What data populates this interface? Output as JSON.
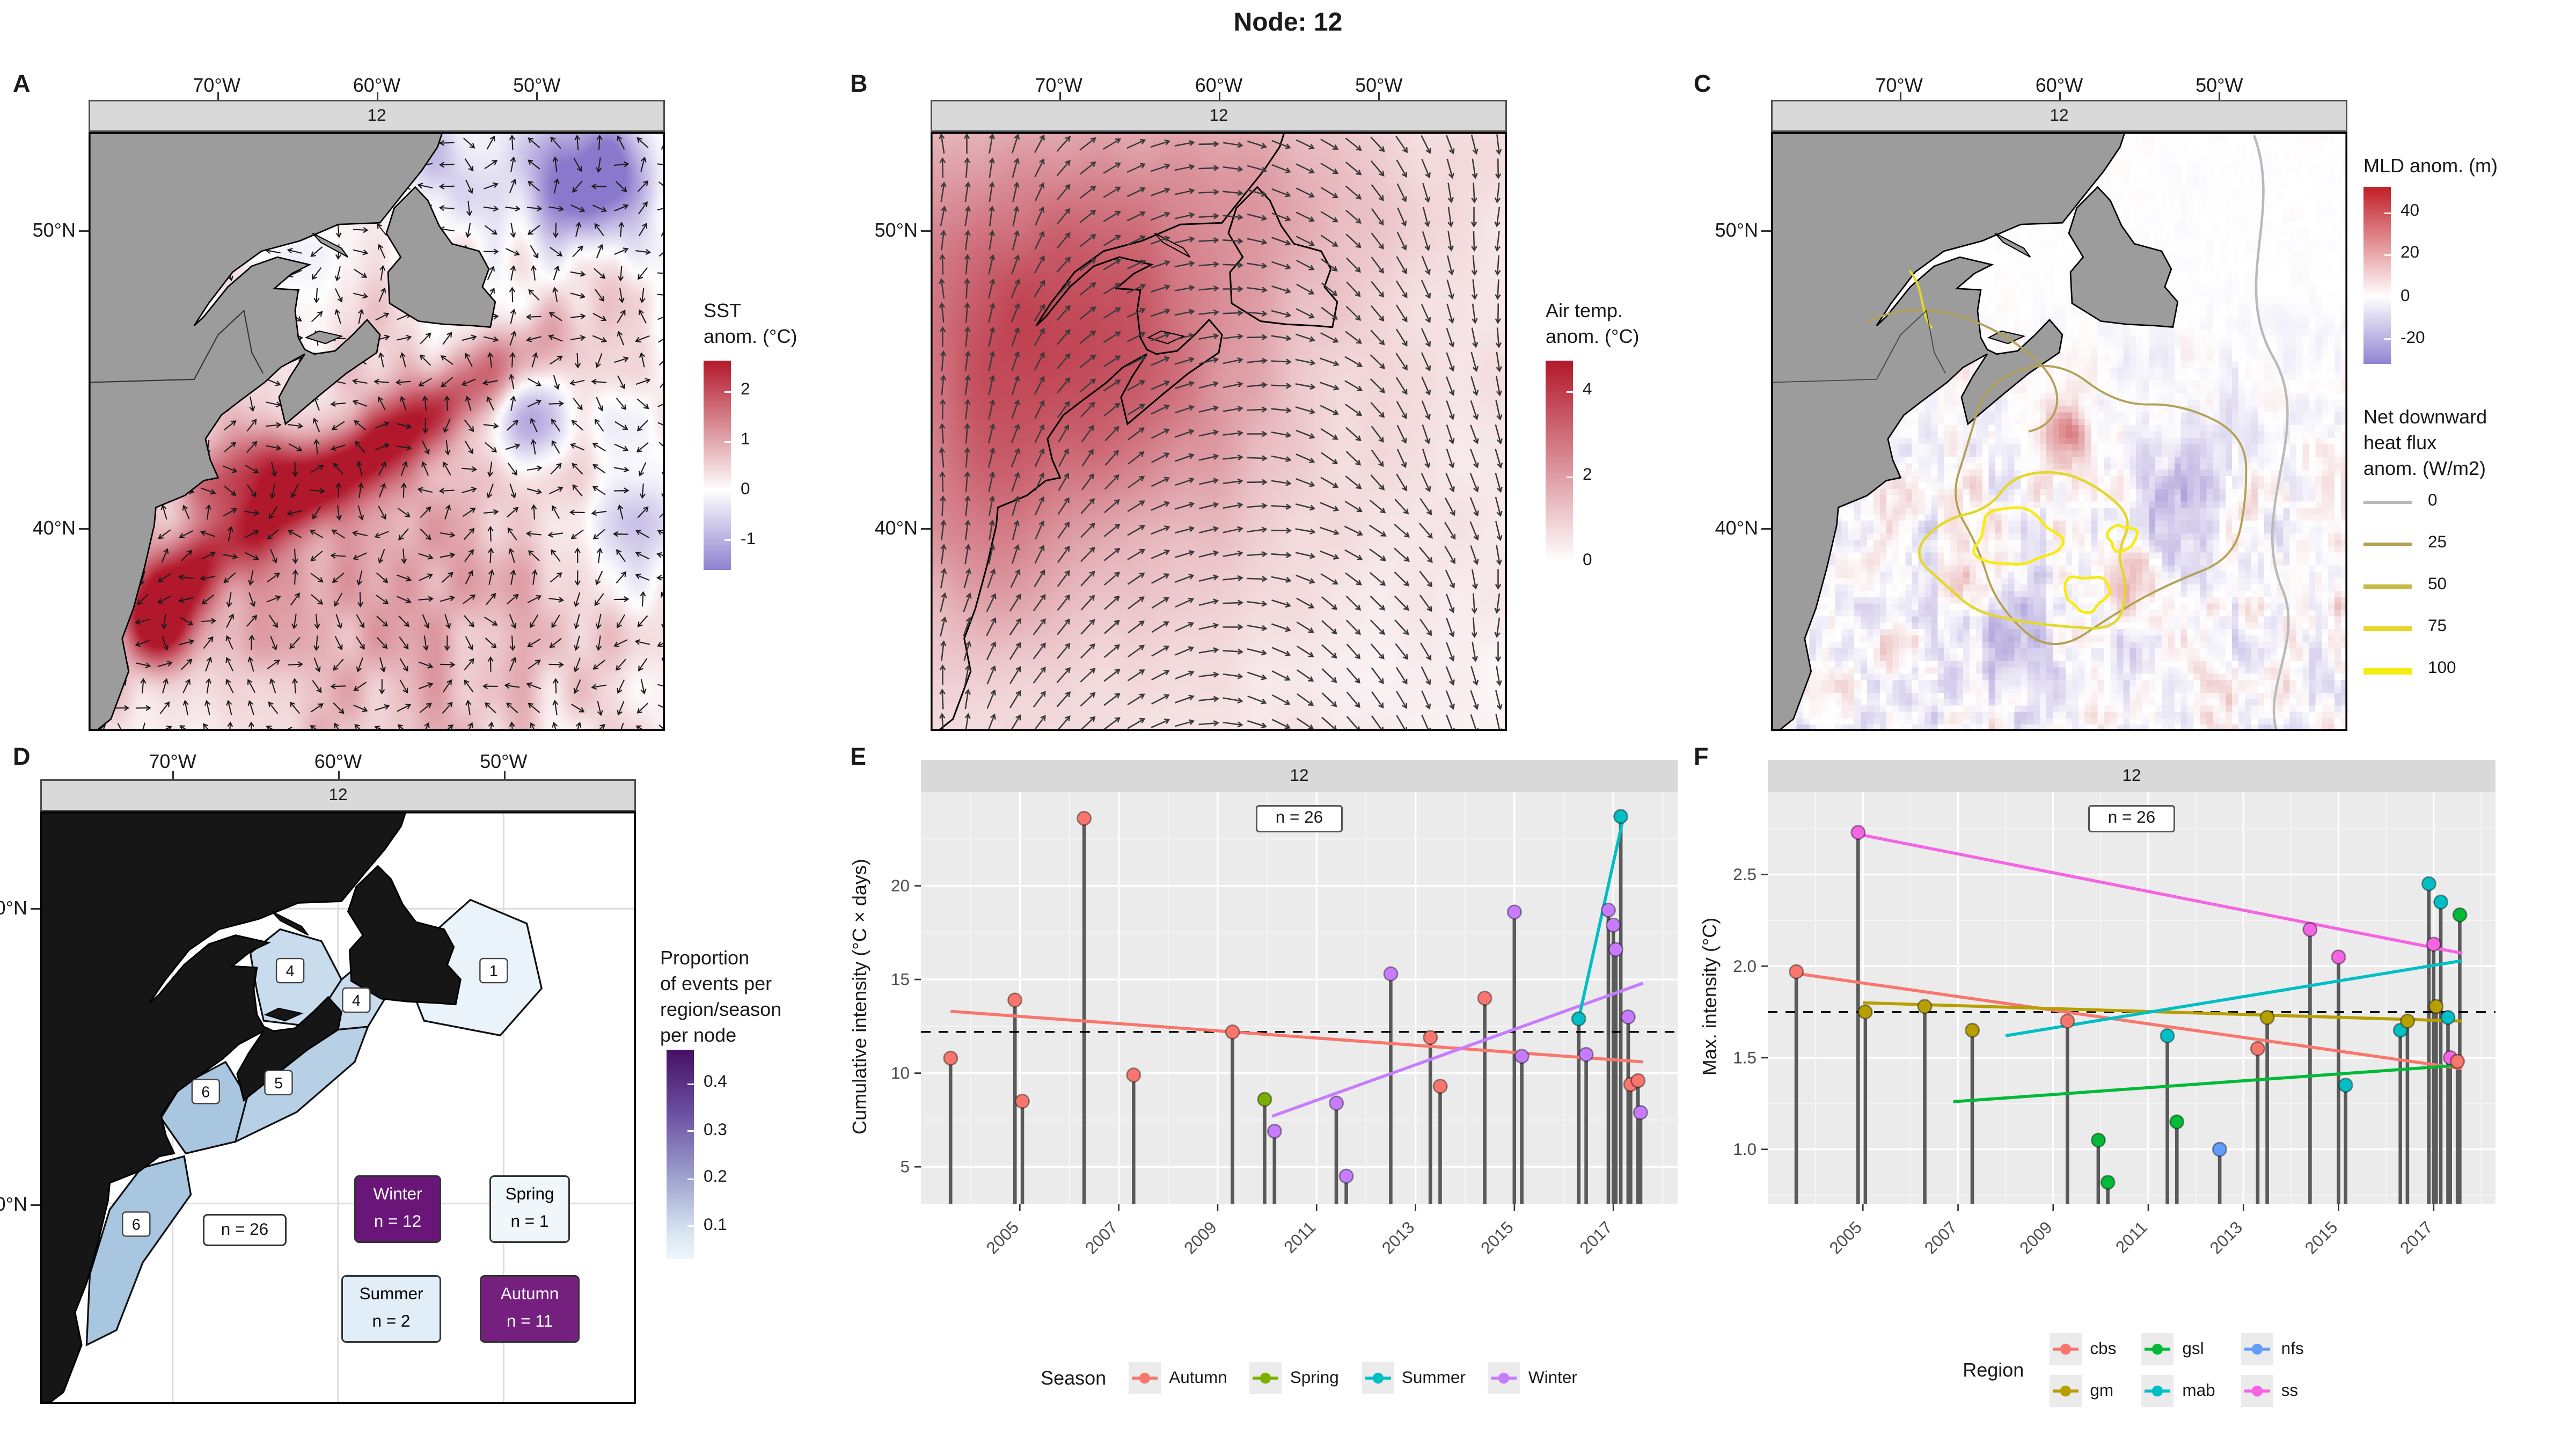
{
  "title": "Node: 12",
  "map_axes": {
    "lon": [
      "70°W",
      "60°W",
      "50°W"
    ],
    "lat": [
      "50°N",
      "40°N"
    ]
  },
  "panels": {
    "A": {
      "letter": "A",
      "strip": "12",
      "colorbar": {
        "title": [
          "SST",
          "anom. (°C)"
        ],
        "ticks": [
          "2",
          "1",
          "0",
          "-1"
        ],
        "top_color": "#b2182b",
        "mid_color": "#ffffff",
        "bottom_color": "#8f81d0"
      }
    },
    "B": {
      "letter": "B",
      "strip": "12",
      "colorbar": {
        "title": [
          "Air temp.",
          "anom. (°C)"
        ],
        "ticks": [
          "4",
          "2",
          "0"
        ],
        "top_color": "#b2182b",
        "bottom_color": "#ffffff"
      }
    },
    "C": {
      "letter": "C",
      "strip": "12",
      "colorbar": {
        "title": [
          "MLD anom. (m)"
        ],
        "ticks": [
          "40",
          "20",
          "0",
          "-20"
        ],
        "top_color": "#c21e26",
        "mid_color": "#ffffff",
        "bottom_color": "#9184d1"
      },
      "contour_legend": {
        "title": [
          "Net downward",
          "heat flux",
          "anom. (W/m2)"
        ],
        "entries": [
          {
            "label": "0",
            "color": "#b9b9b9"
          },
          {
            "label": "25",
            "color": "#b3a155"
          },
          {
            "label": "50",
            "color": "#c6bb45"
          },
          {
            "label": "75",
            "color": "#e3d72c"
          },
          {
            "label": "100",
            "color": "#f6ec13"
          }
        ]
      }
    },
    "D": {
      "letter": "D",
      "strip": "12",
      "region_counts": [
        {
          "region": "gsl",
          "label": "4"
        },
        {
          "region": "cbs",
          "label": "4"
        },
        {
          "region": "nfs",
          "label": "1"
        },
        {
          "region": "gm",
          "label": "6"
        },
        {
          "region": "ss",
          "label": "5"
        },
        {
          "region": "mab",
          "label": "6"
        }
      ],
      "total_label": "n = 26",
      "season_boxes": [
        {
          "season": "Winter",
          "lines": [
            "Winter",
            "n = 12"
          ],
          "fill": "#6a1679",
          "text": "#ffffff"
        },
        {
          "season": "Spring",
          "lines": [
            "Spring",
            "n = 1"
          ],
          "fill": "#f0f7fb",
          "text": "#000000"
        },
        {
          "season": "Summer",
          "lines": [
            "Summer",
            "n = 2"
          ],
          "fill": "#e2eef7",
          "text": "#000000"
        },
        {
          "season": "Autumn",
          "lines": [
            "Autumn",
            "n = 11"
          ],
          "fill": "#75207f",
          "text": "#ffffff"
        }
      ],
      "colorbar": {
        "title": [
          "Proportion",
          "of events per",
          "region/season",
          "per node"
        ],
        "ticks": [
          "0.4",
          "0.3",
          "0.2",
          "0.1"
        ]
      }
    },
    "E": {
      "letter": "E",
      "strip": "12",
      "n_label": "n = 26"
    },
    "F": {
      "letter": "F",
      "strip": "12",
      "n_label": "n = 26"
    }
  },
  "legends": {
    "season": {
      "title": "Season",
      "entries": [
        {
          "label": "Autumn",
          "color": "#F8766D"
        },
        {
          "label": "Spring",
          "color": "#7CAE00"
        },
        {
          "label": "Summer",
          "color": "#00BFC4"
        },
        {
          "label": "Winter",
          "color": "#C77CFF"
        }
      ]
    },
    "region": {
      "title": "Region",
      "entries": [
        {
          "label": "cbs",
          "color": "#F8766D"
        },
        {
          "label": "gm",
          "color": "#B79F00"
        },
        {
          "label": "gsl",
          "color": "#00BA38"
        },
        {
          "label": "mab",
          "color": "#00BFC4"
        },
        {
          "label": "nfs",
          "color": "#619CFF"
        },
        {
          "label": "ss",
          "color": "#F564E3"
        }
      ]
    }
  },
  "chart_data": [
    {
      "id": "E",
      "type": "lollipop",
      "strip": "12",
      "n_label": "n = 26",
      "ylabel": "Cumulative intensity (°C × days)",
      "xlim": [
        2003,
        2018.3
      ],
      "ylim": [
        3,
        25
      ],
      "yticks": [
        {
          "v": 5,
          "label": "5"
        },
        {
          "v": 10,
          "label": "10"
        },
        {
          "v": 15,
          "label": "15"
        },
        {
          "v": 20,
          "label": "20"
        }
      ],
      "xticks": [
        2005,
        2007,
        2009,
        2011,
        2013,
        2015,
        2017
      ],
      "dashed_mean": 12.2,
      "group_by": "season",
      "points": [
        {
          "x": 2003.6,
          "y": 10.8,
          "group": "Autumn"
        },
        {
          "x": 2004.9,
          "y": 13.9,
          "group": "Autumn"
        },
        {
          "x": 2005.05,
          "y": 8.5,
          "group": "Autumn"
        },
        {
          "x": 2006.3,
          "y": 23.6,
          "group": "Autumn"
        },
        {
          "x": 2007.3,
          "y": 9.9,
          "group": "Autumn"
        },
        {
          "x": 2009.3,
          "y": 12.2,
          "group": "Autumn"
        },
        {
          "x": 2009.95,
          "y": 8.6,
          "group": "Spring"
        },
        {
          "x": 2010.15,
          "y": 6.9,
          "group": "Winter"
        },
        {
          "x": 2011.4,
          "y": 8.4,
          "group": "Winter"
        },
        {
          "x": 2011.6,
          "y": 4.5,
          "group": "Winter"
        },
        {
          "x": 2012.5,
          "y": 15.3,
          "group": "Winter"
        },
        {
          "x": 2013.3,
          "y": 11.9,
          "group": "Autumn"
        },
        {
          "x": 2013.5,
          "y": 9.3,
          "group": "Autumn"
        },
        {
          "x": 2014.4,
          "y": 14.0,
          "group": "Autumn"
        },
        {
          "x": 2015.0,
          "y": 18.6,
          "group": "Winter"
        },
        {
          "x": 2015.15,
          "y": 10.9,
          "group": "Winter"
        },
        {
          "x": 2016.3,
          "y": 12.9,
          "group": "Summer"
        },
        {
          "x": 2016.45,
          "y": 11.0,
          "group": "Winter"
        },
        {
          "x": 2016.9,
          "y": 18.7,
          "group": "Winter"
        },
        {
          "x": 2017.0,
          "y": 17.9,
          "group": "Winter"
        },
        {
          "x": 2017.05,
          "y": 16.6,
          "group": "Winter"
        },
        {
          "x": 2017.15,
          "y": 23.7,
          "group": "Summer"
        },
        {
          "x": 2017.3,
          "y": 13.0,
          "group": "Winter"
        },
        {
          "x": 2017.35,
          "y": 9.4,
          "group": "Autumn"
        },
        {
          "x": 2017.5,
          "y": 9.6,
          "group": "Autumn"
        },
        {
          "x": 2017.55,
          "y": 7.9,
          "group": "Winter"
        }
      ],
      "trends": [
        {
          "group": "Autumn",
          "x1": 2003.6,
          "y1": 13.3,
          "x2": 2017.6,
          "y2": 10.6
        },
        {
          "group": "Winter",
          "x1": 2010.1,
          "y1": 7.7,
          "x2": 2017.6,
          "y2": 14.8
        },
        {
          "group": "Summer",
          "x1": 2016.3,
          "y1": 12.9,
          "x2": 2017.2,
          "y2": 23.6
        }
      ]
    },
    {
      "id": "F",
      "type": "lollipop",
      "strip": "12",
      "n_label": "n = 26",
      "ylabel": "Max. intensity (°C)",
      "xlim": [
        2003,
        2018.3
      ],
      "ylim": [
        0.7,
        2.95
      ],
      "yticks": [
        {
          "v": 1,
          "label": "1.0"
        },
        {
          "v": 1.5,
          "label": "1.5"
        },
        {
          "v": 2,
          "label": "2.0"
        },
        {
          "v": 2.5,
          "label": "2.5"
        }
      ],
      "xticks": [
        2005,
        2007,
        2009,
        2011,
        2013,
        2015,
        2017
      ],
      "dashed_mean": 1.75,
      "group_by": "region",
      "points": [
        {
          "x": 2003.6,
          "y": 1.97,
          "group": "cbs"
        },
        {
          "x": 2004.9,
          "y": 2.73,
          "group": "ss"
        },
        {
          "x": 2005.05,
          "y": 1.75,
          "group": "gm"
        },
        {
          "x": 2006.3,
          "y": 1.78,
          "group": "gm"
        },
        {
          "x": 2007.3,
          "y": 1.65,
          "group": "gm"
        },
        {
          "x": 2009.3,
          "y": 1.7,
          "group": "cbs"
        },
        {
          "x": 2009.95,
          "y": 1.05,
          "group": "gsl"
        },
        {
          "x": 2010.15,
          "y": 0.82,
          "group": "gsl"
        },
        {
          "x": 2011.4,
          "y": 1.62,
          "group": "mab"
        },
        {
          "x": 2011.6,
          "y": 1.15,
          "group": "gsl"
        },
        {
          "x": 2012.5,
          "y": 1.0,
          "group": "nfs"
        },
        {
          "x": 2013.3,
          "y": 1.55,
          "group": "cbs"
        },
        {
          "x": 2013.5,
          "y": 1.72,
          "group": "gm"
        },
        {
          "x": 2014.4,
          "y": 2.2,
          "group": "ss"
        },
        {
          "x": 2015.0,
          "y": 2.05,
          "group": "ss"
        },
        {
          "x": 2015.15,
          "y": 1.35,
          "group": "mab"
        },
        {
          "x": 2016.3,
          "y": 1.65,
          "group": "mab"
        },
        {
          "x": 2016.45,
          "y": 1.7,
          "group": "gm"
        },
        {
          "x": 2016.9,
          "y": 2.45,
          "group": "mab"
        },
        {
          "x": 2017.0,
          "y": 2.12,
          "group": "ss"
        },
        {
          "x": 2017.05,
          "y": 1.78,
          "group": "gm"
        },
        {
          "x": 2017.15,
          "y": 2.35,
          "group": "mab"
        },
        {
          "x": 2017.3,
          "y": 1.72,
          "group": "mab"
        },
        {
          "x": 2017.35,
          "y": 1.5,
          "group": "ss"
        },
        {
          "x": 2017.5,
          "y": 1.48,
          "group": "cbs"
        },
        {
          "x": 2017.55,
          "y": 2.28,
          "group": "gsl"
        }
      ],
      "trends": [
        {
          "group": "cbs",
          "x1": 2003.6,
          "y1": 1.96,
          "x2": 2017.6,
          "y2": 1.44
        },
        {
          "group": "ss",
          "x1": 2004.9,
          "y1": 2.72,
          "x2": 2017.6,
          "y2": 2.07
        },
        {
          "group": "gm",
          "x1": 2005.0,
          "y1": 1.8,
          "x2": 2017.6,
          "y2": 1.7
        },
        {
          "group": "mab",
          "x1": 2008.0,
          "y1": 1.62,
          "x2": 2017.6,
          "y2": 2.03
        },
        {
          "group": "gsl",
          "x1": 2006.9,
          "y1": 1.26,
          "x2": 2017.6,
          "y2": 1.46
        }
      ]
    }
  ]
}
